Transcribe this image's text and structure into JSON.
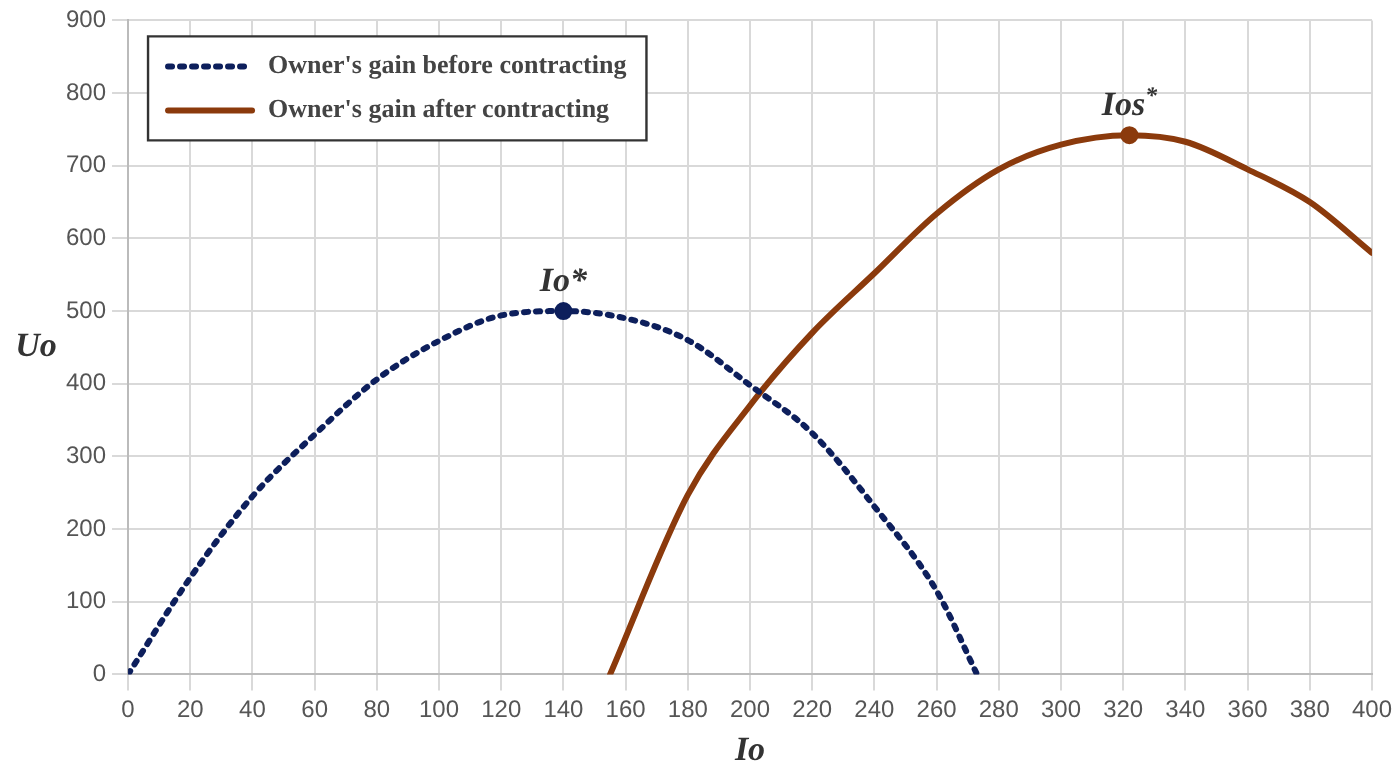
{
  "chart_data": {
    "type": "line",
    "xlabel": "Io",
    "ylabel": "Uo",
    "xlim": [
      0,
      400
    ],
    "xticks": [
      0,
      20,
      40,
      60,
      80,
      100,
      120,
      140,
      160,
      180,
      200,
      220,
      240,
      260,
      280,
      300,
      320,
      340,
      360,
      380,
      400
    ],
    "ylim": [
      0,
      900
    ],
    "yticks": [
      0,
      100,
      200,
      300,
      400,
      500,
      600,
      700,
      800,
      900
    ],
    "grid": true,
    "legend": "top left",
    "marker": "none",
    "series": [
      {
        "name": "Owner's gain before contracting",
        "color": "#0d1f5c",
        "line_style": "dotted",
        "x": [
          0,
          20,
          40,
          60,
          80,
          100,
          120,
          140,
          160,
          180,
          200,
          220,
          240,
          260,
          273
        ],
        "values": [
          0,
          133,
          245,
          330,
          406,
          459,
          494,
          500,
          490,
          460,
          398,
          332,
          231,
          115,
          0
        ]
      },
      {
        "name": "Owner's gain after contracting",
        "color": "#8b3a0c",
        "line_style": "solid",
        "x": [
          155,
          180,
          200,
          220,
          240,
          260,
          280,
          300,
          322,
          340,
          360,
          380,
          400
        ],
        "values": [
          0,
          247,
          370,
          470,
          552,
          634,
          695,
          729,
          742,
          733,
          695,
          650,
          580
        ]
      },
      {
        "type": "scatter",
        "marker": "circle",
        "color": "#0d1f5c",
        "x": [
          140
        ],
        "values": [
          500
        ]
      },
      {
        "type": "scatter",
        "marker": "circle",
        "color": "#8b3a0c",
        "x": [
          322
        ],
        "values": [
          742
        ]
      }
    ],
    "annotations": [
      {
        "text": "Io*",
        "x": 140,
        "y": 500
      },
      {
        "text": "Ios$^{*}$",
        "x": 322,
        "y": 742
      }
    ]
  }
}
